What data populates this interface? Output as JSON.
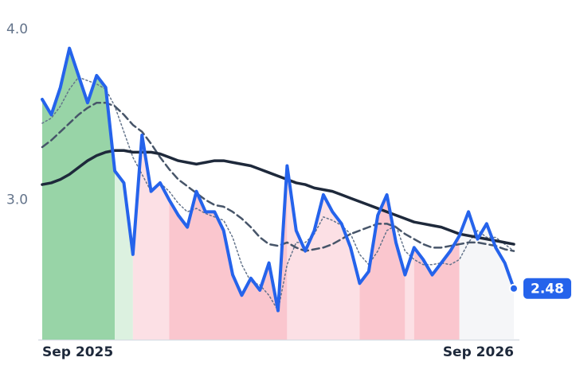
{
  "chart_data": {
    "type": "line",
    "categories": [
      "Sep 2025",
      null,
      null,
      null,
      null,
      null,
      null,
      null,
      null,
      null,
      null,
      null,
      null,
      null,
      null,
      null,
      null,
      null,
      null,
      null,
      null,
      null,
      null,
      null,
      null,
      null,
      null,
      null,
      null,
      null,
      null,
      null,
      null,
      null,
      null,
      null,
      null,
      null,
      null,
      null,
      null,
      null,
      null,
      null,
      null,
      null,
      null,
      null,
      null,
      null,
      null,
      null,
      "Sep 2026"
    ],
    "ylim": [
      2.18,
      4.08
    ],
    "yticks": [
      {
        "value": 3,
        "label": "3.0"
      },
      {
        "value": 4,
        "label": "4.0"
      }
    ],
    "series": [
      {
        "color": "#2563eb",
        "style": "solid",
        "width": 4,
        "values": [
          3.59,
          3.5,
          3.66,
          3.89,
          3.73,
          3.57,
          3.73,
          3.66,
          3.17,
          3.1,
          2.68,
          3.38,
          3.05,
          3.1,
          3.0,
          2.91,
          2.84,
          3.05,
          2.93,
          2.93,
          2.82,
          2.56,
          2.44,
          2.54,
          2.47,
          2.63,
          2.35,
          3.2,
          2.82,
          2.7,
          2.82,
          3.03,
          2.93,
          2.86,
          2.72,
          2.51,
          2.58,
          2.91,
          3.03,
          2.75,
          2.56,
          2.72,
          2.65,
          2.56,
          2.63,
          2.7,
          2.79,
          2.93,
          2.77,
          2.86,
          2.72,
          2.63,
          2.48
        ]
      },
      {
        "color": "#1e293b",
        "style": "solid",
        "width": 3.5,
        "values": [
          3.09,
          3.1,
          3.12,
          3.15,
          3.19,
          3.23,
          3.26,
          3.28,
          3.29,
          3.29,
          3.28,
          3.28,
          3.28,
          3.27,
          3.25,
          3.23,
          3.22,
          3.21,
          3.22,
          3.23,
          3.23,
          3.22,
          3.21,
          3.2,
          3.18,
          3.16,
          3.14,
          3.12,
          3.1,
          3.09,
          3.07,
          3.06,
          3.05,
          3.03,
          3.01,
          2.99,
          2.97,
          2.95,
          2.93,
          2.91,
          2.89,
          2.87,
          2.86,
          2.85,
          2.84,
          2.82,
          2.8,
          2.79,
          2.78,
          2.77,
          2.76,
          2.75,
          2.74
        ]
      },
      {
        "color": "#475569",
        "style": "dashed",
        "width": 2.5,
        "values": [
          3.31,
          3.35,
          3.4,
          3.45,
          3.5,
          3.54,
          3.57,
          3.57,
          3.55,
          3.5,
          3.44,
          3.4,
          3.33,
          3.25,
          3.18,
          3.12,
          3.08,
          3.04,
          3.0,
          2.97,
          2.96,
          2.93,
          2.89,
          2.84,
          2.78,
          2.74,
          2.73,
          2.75,
          2.72,
          2.7,
          2.71,
          2.72,
          2.74,
          2.77,
          2.8,
          2.82,
          2.84,
          2.86,
          2.86,
          2.84,
          2.8,
          2.77,
          2.74,
          2.72,
          2.72,
          2.73,
          2.74,
          2.75,
          2.75,
          2.74,
          2.73,
          2.71,
          2.7
        ]
      },
      {
        "color": "#64748b",
        "style": "dotted",
        "width": 1.5,
        "values": [
          3.45,
          3.48,
          3.55,
          3.65,
          3.72,
          3.7,
          3.68,
          3.65,
          3.55,
          3.4,
          3.25,
          3.15,
          3.05,
          3.1,
          3.05,
          2.98,
          2.93,
          2.95,
          2.92,
          2.9,
          2.88,
          2.78,
          2.62,
          2.52,
          2.5,
          2.44,
          2.35,
          2.62,
          2.75,
          2.75,
          2.8,
          2.9,
          2.88,
          2.85,
          2.8,
          2.68,
          2.62,
          2.7,
          2.82,
          2.85,
          2.7,
          2.65,
          2.62,
          2.62,
          2.63,
          2.62,
          2.65,
          2.75,
          2.82,
          2.78,
          2.78,
          2.74,
          2.7
        ]
      }
    ],
    "regions": [
      {
        "start": 0,
        "end": 8,
        "color": "#86cc98"
      },
      {
        "start": 8,
        "end": 10,
        "color": "#d6eeda"
      },
      {
        "start": 10,
        "end": 14,
        "color": "#fcdbe1"
      },
      {
        "start": 14,
        "end": 27,
        "color": "#f9bcc6"
      },
      {
        "start": 27,
        "end": 35,
        "color": "#fcdbe1"
      },
      {
        "start": 35,
        "end": 40,
        "color": "#f9bcc6"
      },
      {
        "start": 40,
        "end": 41,
        "color": "#fcdbe1"
      },
      {
        "start": 41,
        "end": 46,
        "color": "#f9bcc6"
      },
      {
        "start": 46,
        "end": 52,
        "color": "#f3f5f7"
      }
    ]
  }
}
